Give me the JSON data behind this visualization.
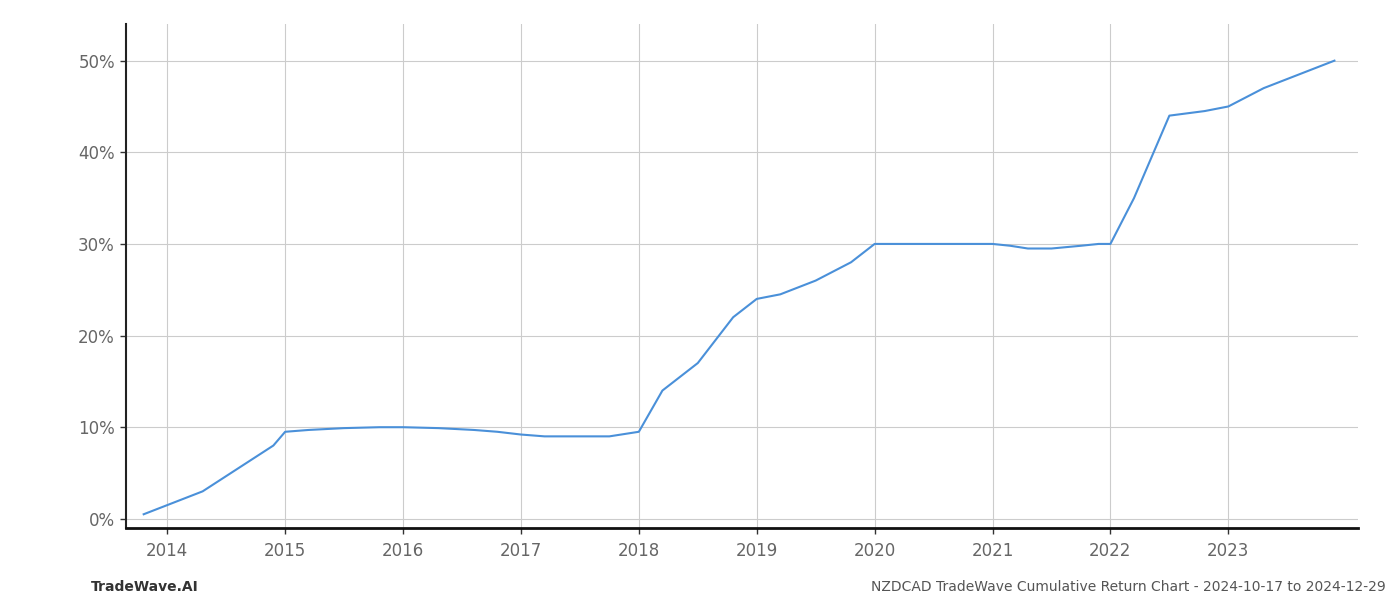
{
  "x_values": [
    2013.8,
    2014.0,
    2014.3,
    2014.6,
    2014.9,
    2015.0,
    2015.2,
    2015.5,
    2015.8,
    2016.0,
    2016.3,
    2016.6,
    2016.8,
    2017.0,
    2017.2,
    2017.5,
    2017.75,
    2017.85,
    2018.0,
    2018.2,
    2018.5,
    2018.8,
    2019.0,
    2019.2,
    2019.5,
    2019.8,
    2020.0,
    2020.2,
    2020.5,
    2020.8,
    2021.0,
    2021.15,
    2021.3,
    2021.5,
    2021.75,
    2021.9,
    2022.0,
    2022.2,
    2022.5,
    2022.8,
    2023.0,
    2023.3,
    2023.6,
    2023.9
  ],
  "y_values": [
    0.5,
    1.5,
    3.0,
    5.5,
    8.0,
    9.5,
    9.7,
    9.9,
    10.0,
    10.0,
    9.9,
    9.7,
    9.5,
    9.2,
    9.0,
    9.0,
    9.0,
    9.2,
    9.5,
    14.0,
    17.0,
    22.0,
    24.0,
    24.5,
    26.0,
    28.0,
    30.0,
    30.0,
    30.0,
    30.0,
    30.0,
    29.8,
    29.5,
    29.5,
    29.8,
    30.0,
    30.0,
    35.0,
    44.0,
    44.5,
    45.0,
    47.0,
    48.5,
    50.0
  ],
  "line_color": "#4a90d9",
  "line_width": 1.5,
  "background_color": "#ffffff",
  "grid_color": "#cccccc",
  "ylim": [
    -1,
    54
  ],
  "xlim": [
    2013.65,
    2024.1
  ],
  "yticks": [
    0,
    10,
    20,
    30,
    40,
    50
  ],
  "xticks": [
    2014,
    2015,
    2016,
    2017,
    2018,
    2019,
    2020,
    2021,
    2022,
    2023
  ],
  "tick_fontsize": 12,
  "footer_left": "TradeWave.AI",
  "footer_right": "NZDCAD TradeWave Cumulative Return Chart - 2024-10-17 to 2024-12-29",
  "footer_fontsize": 10,
  "left_spine_color": "#222222",
  "bottom_spine_color": "#111111"
}
